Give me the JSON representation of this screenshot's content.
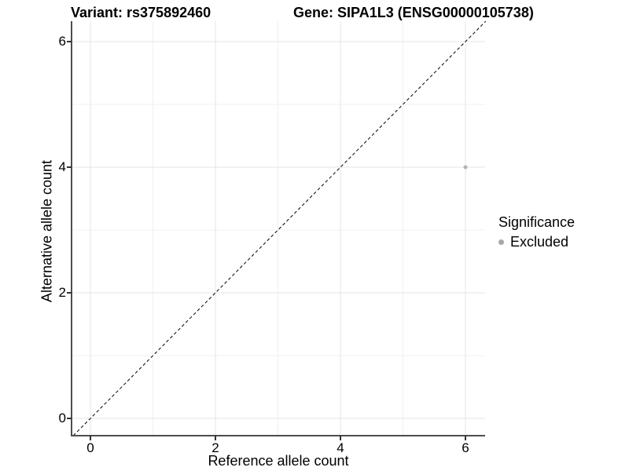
{
  "title": {
    "variant": "Variant: rs375892460",
    "gene": "Gene: SIPA1L3 (ENSG00000105738)"
  },
  "axes": {
    "x": {
      "label": "Reference allele count",
      "ticks": [
        "0",
        "2",
        "4",
        "6"
      ]
    },
    "y": {
      "label": "Alternative allele count",
      "ticks": [
        "0",
        "2",
        "4",
        "6"
      ]
    }
  },
  "legend": {
    "title": "Significance",
    "items": [
      {
        "label": "Excluded",
        "color": "#a8a8a8",
        "marker": "circle-icon"
      }
    ]
  },
  "colors": {
    "background": "#ffffff",
    "text": "#000000",
    "axis_line": "#4d4d4d",
    "tick_mark": "#333333",
    "grid_major": "#e4e4e4",
    "grid_minor": "#f0f0f0",
    "point": "#b3b3b3",
    "reference_line": "#000000"
  },
  "chart_data": {
    "type": "scatter",
    "title": "Variant: rs375892460 — Gene: SIPA1L3 (ENSG00000105738)",
    "xlabel": "Reference allele count",
    "ylabel": "Alternative allele count",
    "xlim": [
      -0.3,
      6.33
    ],
    "ylim": [
      -0.28,
      6.31
    ],
    "x_ticks": [
      0,
      2,
      4,
      6
    ],
    "y_ticks": [
      0,
      2,
      4,
      6
    ],
    "minor_ticks": [
      1,
      3,
      5
    ],
    "grid": "on",
    "legend_position": "right",
    "series": [
      {
        "name": "Excluded",
        "color": "#b3b3b3",
        "points": [
          [
            6,
            4
          ]
        ]
      }
    ],
    "reference_line": {
      "type": "identity",
      "equation": "y = x",
      "style": "dashed",
      "color": "#000000"
    }
  }
}
